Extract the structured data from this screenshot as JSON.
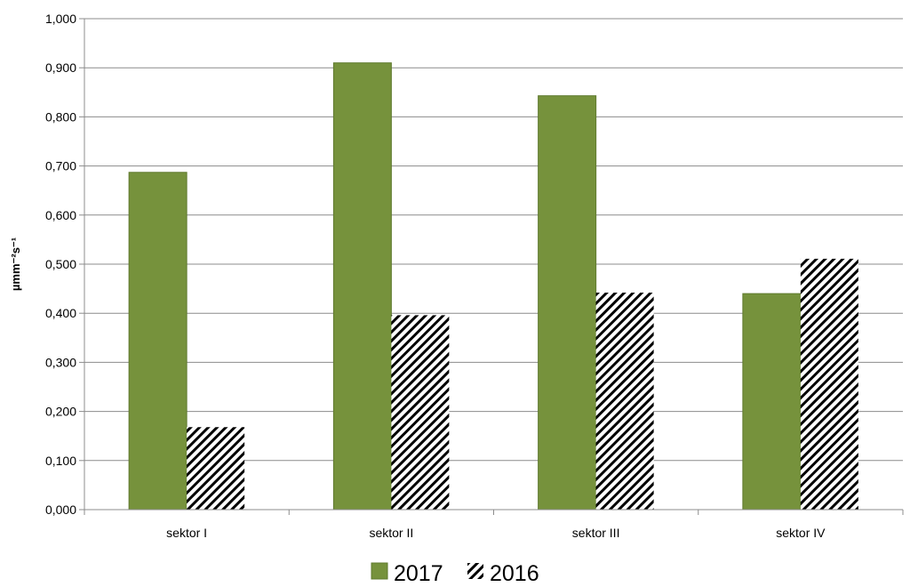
{
  "chart_data": {
    "type": "bar",
    "categories": [
      "sektor I",
      "sektor II",
      "sektor  III",
      "sektor IV"
    ],
    "series": [
      {
        "name": "2017",
        "values": [
          0.687,
          0.91,
          0.843,
          0.44
        ],
        "color": "#76923c",
        "pattern": "solid"
      },
      {
        "name": "2016",
        "values": [
          0.168,
          0.396,
          0.442,
          0.511
        ],
        "color": "#000000",
        "pattern": "diagonal-hatch"
      }
    ],
    "ylabel": "µmm⁻²s⁻¹",
    "ylim": [
      0,
      1.0
    ],
    "yticks": [
      "0,000",
      "0,100",
      "0,200",
      "0,300",
      "0,400",
      "0,500",
      "0,600",
      "0,700",
      "0,800",
      "0,900",
      "1,000"
    ],
    "grid": true,
    "legend": "bottom-center"
  }
}
